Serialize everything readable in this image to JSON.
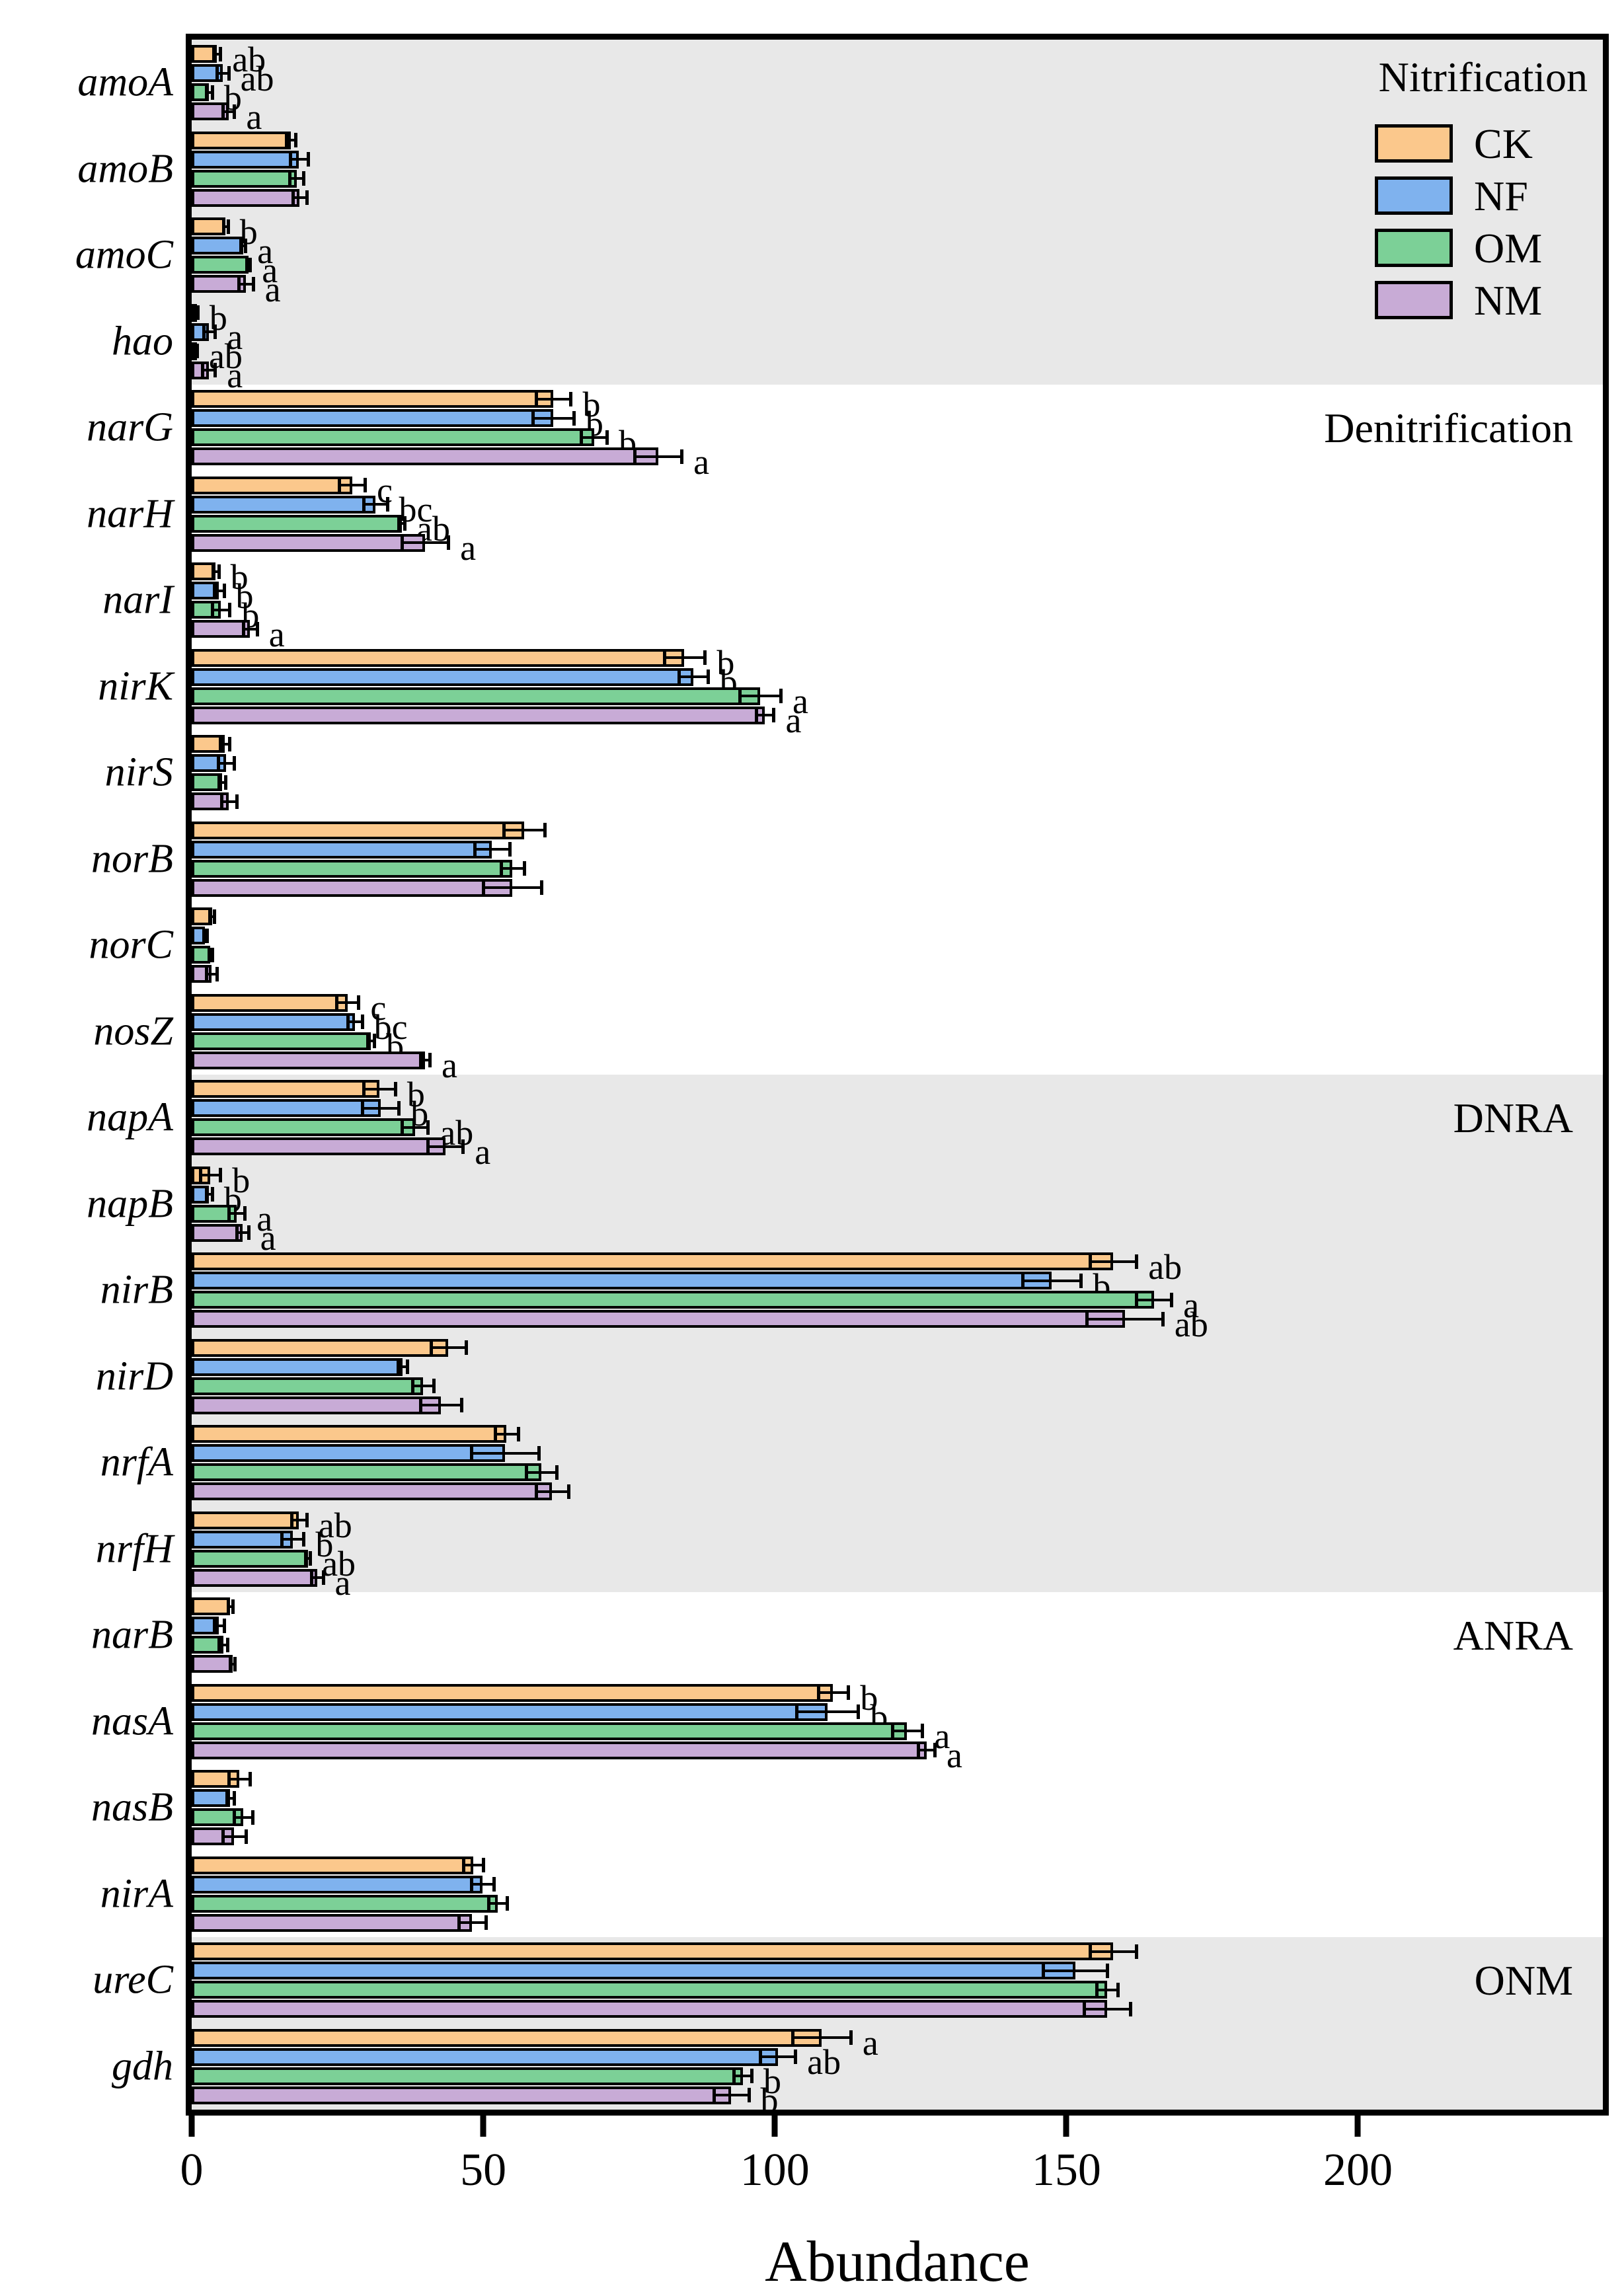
{
  "figure": {
    "xlabel": "Abundance",
    "x_ticks": [
      0,
      50,
      100,
      150,
      200
    ],
    "x_max": 242,
    "band_gray": "#e8e8e8",
    "bar_edge_color": "#000000",
    "legend": {
      "title": "Nitrification",
      "entries": [
        {
          "label": "CK",
          "color": "#FBC88C"
        },
        {
          "label": "NF",
          "color": "#7FB2EE"
        },
        {
          "label": "OM",
          "color": "#7CD097"
        },
        {
          "label": "NM",
          "color": "#C8ABD6"
        }
      ]
    },
    "sections": [
      {
        "label": "Nitrification",
        "genes": [
          "amoA",
          "amoB",
          "amoC",
          "hao"
        ],
        "shaded": true
      },
      {
        "label": "Denitrification",
        "genes": [
          "narG",
          "narH",
          "narI",
          "nirK",
          "nirS",
          "norB",
          "norC",
          "nosZ"
        ],
        "shaded": false
      },
      {
        "label": "DNRA",
        "genes": [
          "napA",
          "napB",
          "nirB",
          "nirD",
          "nrfA",
          "nrfH"
        ],
        "shaded": true
      },
      {
        "label": "ANRA",
        "genes": [
          "narB",
          "nasA",
          "nasB",
          "nirA"
        ],
        "shaded": false
      },
      {
        "label": "ONM",
        "genes": [
          "ureC",
          "gdh"
        ],
        "shaded": true
      }
    ]
  },
  "chart_data": {
    "type": "bar",
    "orientation": "horizontal",
    "title": "",
    "xlabel": "Abundance",
    "ylabel": "",
    "xlim": [
      0,
      242
    ],
    "categories": [
      "amoA",
      "amoB",
      "amoC",
      "hao",
      "narG",
      "narH",
      "narI",
      "nirK",
      "nirS",
      "norB",
      "norC",
      "nosZ",
      "napA",
      "napB",
      "nirB",
      "nirD",
      "nrfA",
      "nrfH",
      "narB",
      "nasA",
      "nasB",
      "nirA",
      "ureC",
      "gdh"
    ],
    "series": [
      {
        "name": "CK",
        "color": "#FBC88C",
        "values": [
          4.3,
          17.0,
          5.8,
          0.7,
          62,
          27.5,
          4.1,
          84.5,
          5.7,
          57,
          3.5,
          26.7,
          32.2,
          3.2,
          158,
          44,
          54,
          18.4,
          6.6,
          110,
          8.2,
          48.3,
          158,
          108
        ],
        "errors": [
          0.6,
          0.8,
          0.4,
          0.3,
          3,
          2.2,
          0.5,
          3.5,
          0.8,
          3.5,
          0.4,
          1.9,
          2.7,
          1.7,
          4,
          3,
          2,
          1.3,
          0.4,
          2.6,
          1.8,
          1.7,
          4,
          5
        ],
        "letters": [
          "ab",
          "",
          "b",
          "b",
          "b",
          "c",
          "b",
          "b",
          "",
          "",
          "",
          "c",
          "b",
          "b",
          "ab",
          "",
          "",
          "ab",
          "",
          "b",
          "",
          "",
          "",
          "a"
        ]
      },
      {
        "name": "NF",
        "color": "#7FB2EE",
        "values": [
          5.3,
          18.4,
          8.8,
          3.0,
          62,
          31.5,
          4.7,
          86,
          5.9,
          51.5,
          2.3,
          28,
          32.4,
          3.0,
          147.5,
          36.2,
          53.7,
          17.3,
          4.7,
          109,
          6.6,
          49.9,
          151.5,
          100.5
        ],
        "errors": [
          1.0,
          1.5,
          0.4,
          1.0,
          3.5,
          2,
          0.8,
          2.5,
          1.4,
          3,
          0.3,
          1.2,
          3.1,
          0.5,
          5,
          0.8,
          5.8,
          1.9,
          0.9,
          5.3,
          0.6,
          1.9,
          5.5,
          3
        ],
        "letters": [
          "ab",
          "",
          "a",
          "a",
          "b",
          "bc",
          "b",
          "b",
          "",
          "",
          "",
          "bc",
          "b",
          "b",
          "b",
          "",
          "",
          "b",
          "",
          "b",
          "",
          "",
          "",
          "ab"
        ]
      },
      {
        "name": "OM",
        "color": "#7CD097",
        "values": [
          3.0,
          18.0,
          9.7,
          0.7,
          69,
          36,
          5.0,
          97.5,
          5.2,
          55,
          3.2,
          30.7,
          38.3,
          7.7,
          165,
          39.7,
          60,
          19.9,
          5.4,
          122.7,
          8.8,
          52.5,
          157,
          94.5
        ],
        "errors": [
          0.5,
          1.2,
          0.3,
          0.2,
          2.2,
          0.5,
          1.5,
          3.5,
          0.6,
          2,
          0.3,
          0.6,
          2.2,
          1.4,
          3,
          1.8,
          2.6,
          0.4,
          0.7,
          2.6,
          1.6,
          1.6,
          1.8,
          1.5
        ],
        "letters": [
          "b",
          "",
          "a",
          "ab",
          "b",
          "ab",
          "b",
          "a",
          "",
          "",
          "",
          "b",
          "ab",
          "a",
          "a",
          "",
          "",
          "ab",
          "",
          "a",
          "",
          "",
          "",
          "b"
        ]
      },
      {
        "name": "NM",
        "color": "#C8ABD6",
        "values": [
          6.3,
          18.5,
          9.3,
          2.9,
          80,
          40,
          10.0,
          98.3,
          6.4,
          55,
          3.4,
          40,
          43.5,
          8.7,
          160,
          42.7,
          61.8,
          21.5,
          7.0,
          126,
          7.3,
          48.1,
          157,
          92.5
        ],
        "errors": [
          1.0,
          1.2,
          1.2,
          1.1,
          4,
          4,
          1.2,
          1.5,
          1.3,
          5,
          0.9,
          0.8,
          3,
          1.0,
          6.5,
          3.5,
          2.8,
          1.0,
          0.4,
          1.4,
          2.0,
          2.3,
          4,
          3
        ],
        "letters": [
          "a",
          "",
          "a",
          "a",
          "a",
          "a",
          "a",
          "a",
          "",
          "",
          "",
          "a",
          "a",
          "a",
          "ab",
          "",
          "",
          "a",
          "",
          "a",
          "",
          "",
          "",
          "b"
        ]
      }
    ]
  }
}
